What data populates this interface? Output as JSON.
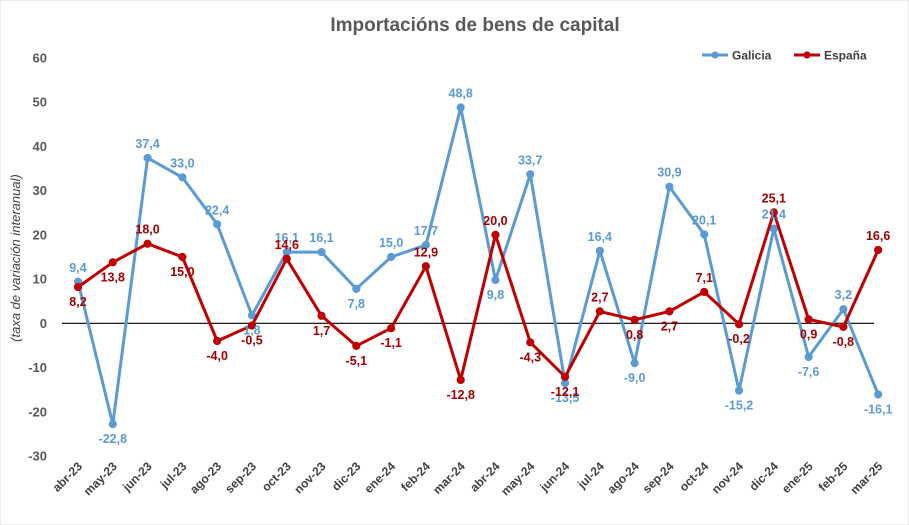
{
  "chart_data": {
    "type": "line",
    "title": "Importacións de bens de capital",
    "ylabel": "(taxa de variación interanual)",
    "xlabel": "",
    "ylim": [
      -30,
      60
    ],
    "yticks": [
      -30,
      -20,
      -10,
      0,
      10,
      20,
      30,
      40,
      50,
      60
    ],
    "grid": "none",
    "zero_line": true,
    "legend": "top-right",
    "categories": [
      "abr-23",
      "may-23",
      "jun-23",
      "jul-23",
      "ago-23",
      "sep-23",
      "oct-23",
      "nov-23",
      "dic-23",
      "ene-24",
      "feb-24",
      "mar-24",
      "abr-24",
      "may-24",
      "jun-24",
      "jul-24",
      "ago-24",
      "sep-24",
      "oct-24",
      "nov-24",
      "dic-24",
      "ene-25",
      "feb-25",
      "mar-25"
    ],
    "series": [
      {
        "name": "Galicia",
        "color": "#5B9BD5",
        "label_color": "#5B9BD5",
        "values": [
          9.4,
          -22.8,
          37.4,
          33.0,
          22.4,
          1.8,
          16.1,
          16.1,
          7.8,
          15.0,
          17.7,
          48.8,
          9.8,
          33.7,
          -13.5,
          16.4,
          -9.0,
          30.9,
          20.1,
          -15.2,
          21.4,
          -7.6,
          3.2,
          -16.1
        ],
        "labels": [
          "9,4",
          "-22,8",
          "37,4",
          "33,0",
          "22,4",
          "1,8",
          "16,1",
          "16,1",
          "7,8",
          "15,0",
          "17,7",
          "48,8",
          "9,8",
          "33,7",
          "-13,5",
          "16,4",
          "-9,0",
          "30,9",
          "20,1",
          "-15,2",
          "21,4",
          "-7,6",
          "3,2",
          "-16,1"
        ]
      },
      {
        "name": "España",
        "color": "#C00000",
        "label_color": "#A50000",
        "values": [
          8.2,
          13.8,
          18.0,
          15.0,
          -4.0,
          -0.5,
          14.6,
          1.7,
          -5.1,
          -1.1,
          12.9,
          -12.8,
          20.0,
          -4.3,
          -12.1,
          2.7,
          0.8,
          2.7,
          7.1,
          -0.2,
          25.1,
          0.9,
          -0.8,
          16.6
        ],
        "labels": [
          "8,2",
          "13,8",
          "18,0",
          "15,0",
          "-4,0",
          "-0,5",
          "14,6",
          "1,7",
          "-5,1",
          "-1,1",
          "12,9",
          "-12,8",
          "20,0",
          "-4,3",
          "-12,1",
          "2,7",
          "0,8",
          "2,7",
          "7,1",
          "-0,2",
          "25,1",
          "0,9",
          "-0,8",
          "16,6"
        ]
      }
    ]
  }
}
